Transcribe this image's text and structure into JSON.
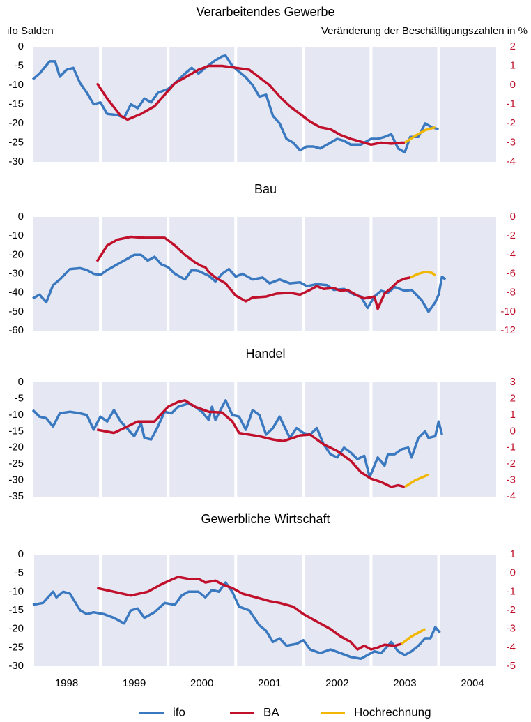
{
  "chart_data": [
    {
      "type": "line",
      "title": "Verarbeitendes Gewerbe",
      "ylabel": "ifo Salden",
      "y2label": "Veränderung der Beschäftigungszahlen in %",
      "xlim": [
        1998,
        2004.85
      ],
      "xticks": [
        1999,
        2000,
        2001,
        2002,
        2003,
        2004
      ],
      "ylim": [
        -30,
        0
      ],
      "yticks": [
        0,
        -5,
        -10,
        -15,
        -20,
        -25,
        -30
      ],
      "y2lim": [
        -4,
        2
      ],
      "y2ticks": [
        2,
        1,
        0,
        -1,
        -2,
        -3,
        -4
      ],
      "series": [
        {
          "name": "ifo",
          "color": "#3a78c0",
          "x": [
            1998.0,
            1998.1,
            1998.25,
            1998.33,
            1998.4,
            1998.5,
            1998.6,
            1998.7,
            1998.8,
            1998.9,
            1999.0,
            1999.1,
            1999.25,
            1999.35,
            1999.45,
            1999.55,
            1999.65,
            1999.75,
            1999.85,
            2000.0,
            2000.1,
            2000.25,
            2000.35,
            2000.45,
            2000.55,
            2000.7,
            2000.8,
            2000.85,
            2000.95,
            2001.05,
            2001.15,
            2001.25,
            2001.35,
            2001.45,
            2001.55,
            2001.65,
            2001.75,
            2001.85,
            2001.95,
            2002.05,
            2002.15,
            2002.25,
            2002.35,
            2002.5,
            2002.6,
            2002.7,
            2002.85,
            2003.0,
            2003.1,
            2003.2,
            2003.3,
            2003.4,
            2003.5,
            2003.58,
            2003.7,
            2003.8,
            2003.9,
            2004.0
          ],
          "values": [
            -8.5,
            -7,
            -3.8,
            -3.8,
            -7.8,
            -6,
            -5.5,
            -9.5,
            -12,
            -15,
            -14.5,
            -17.5,
            -17.8,
            -18.5,
            -15,
            -16,
            -13.5,
            -14.5,
            -12,
            -11,
            -9.5,
            -7,
            -5.5,
            -7,
            -5.5,
            -3.5,
            -2.5,
            -2.3,
            -5,
            -6.5,
            -8,
            -10,
            -13,
            -12.5,
            -18,
            -20,
            -24,
            -25,
            -27,
            -26,
            -26,
            -26.5,
            -25.5,
            -24,
            -24.5,
            -25.5,
            -25.5,
            -24,
            -24,
            -23.5,
            -22.8,
            -26.5,
            -27.5,
            -23.5,
            -23.5,
            -20,
            -21,
            -21.5
          ]
        },
        {
          "name": "BA",
          "color": "#c0102b",
          "axis": "y2",
          "x": [
            1998.95,
            1999.1,
            1999.3,
            1999.4,
            1999.6,
            1999.8,
            1999.95,
            2000.1,
            2000.3,
            2000.45,
            2000.6,
            2000.8,
            2001.0,
            2001.2,
            2001.35,
            2001.5,
            2001.65,
            2001.8,
            2001.95,
            2002.1,
            2002.25,
            2002.4,
            2002.55,
            2002.7,
            2002.85,
            2003.0,
            2003.15,
            2003.3,
            2003.45,
            2003.5
          ],
          "values": [
            0.1,
            -0.7,
            -1.6,
            -1.8,
            -1.5,
            -1.1,
            -0.5,
            0.1,
            0.5,
            0.8,
            1.0,
            1.0,
            0.9,
            0.8,
            0.4,
            0,
            -0.6,
            -1.1,
            -1.5,
            -1.9,
            -2.2,
            -2.3,
            -2.6,
            -2.8,
            -2.95,
            -3.1,
            -3.0,
            -3.05,
            -3.0,
            -3.0
          ]
        },
        {
          "name": "Hochrechnung",
          "color": "#f2b705",
          "axis": "y2",
          "x": [
            2003.5,
            2003.65,
            2003.8,
            2003.95
          ],
          "values": [
            -3.0,
            -2.65,
            -2.35,
            -2.2
          ]
        }
      ]
    },
    {
      "type": "line",
      "title": "Bau",
      "xlim": [
        1998,
        2004.85
      ],
      "xticks": [
        1999,
        2000,
        2001,
        2002,
        2003,
        2004
      ],
      "ylim": [
        -60,
        0
      ],
      "yticks": [
        0,
        -10,
        -20,
        -30,
        -40,
        -50,
        -60
      ],
      "y2lim": [
        -12,
        0
      ],
      "y2ticks": [
        0,
        -2,
        -4,
        -6,
        -8,
        -10,
        -12
      ],
      "series": [
        {
          "name": "ifo",
          "color": "#3a78c0",
          "x": [
            1998.0,
            1998.1,
            1998.2,
            1998.3,
            1998.4,
            1998.55,
            1998.7,
            1998.8,
            1998.9,
            1999.0,
            1999.1,
            1999.25,
            1999.4,
            1999.5,
            1999.6,
            1999.7,
            1999.8,
            1999.9,
            2000.0,
            2000.1,
            2000.25,
            2000.35,
            2000.45,
            2000.6,
            2000.7,
            2000.8,
            2000.9,
            2001.0,
            2001.1,
            2001.25,
            2001.4,
            2001.5,
            2001.65,
            2001.8,
            2001.95,
            2002.05,
            2002.2,
            2002.35,
            2002.45,
            2002.6,
            2002.75,
            2002.85,
            2002.95,
            2003.05,
            2003.15,
            2003.25,
            2003.35,
            2003.5,
            2003.6,
            2003.75,
            2003.85,
            2003.95,
            2004.0,
            2004.05,
            2004.1
          ],
          "values": [
            -43,
            -41,
            -45,
            -36,
            -33,
            -27.5,
            -27,
            -28,
            -30,
            -30.5,
            -28,
            -25,
            -22,
            -20,
            -20,
            -23,
            -21,
            -25,
            -26.5,
            -30,
            -33,
            -28,
            -28.5,
            -31,
            -34,
            -30,
            -27.5,
            -31.5,
            -30,
            -33,
            -32,
            -35,
            -33,
            -35,
            -34.5,
            -36.5,
            -35.5,
            -36,
            -38.5,
            -38,
            -41,
            -42,
            -48,
            -42,
            -39,
            -40,
            -37,
            -39,
            -38.5,
            -44,
            -50,
            -45,
            -41,
            -31.5,
            -33
          ]
        },
        {
          "name": "BA",
          "color": "#c0102b",
          "axis": "y2",
          "x": [
            1998.95,
            1999.1,
            1999.25,
            1999.45,
            1999.65,
            1999.95,
            2000.1,
            2000.25,
            2000.4,
            2000.5,
            2000.55,
            2000.6,
            2000.7,
            2000.85,
            2001.0,
            2001.15,
            2001.25,
            2001.45,
            2001.6,
            2001.8,
            2001.95,
            2002.1,
            2002.2,
            2002.3,
            2002.45,
            2002.55,
            2002.65,
            2002.8,
            2002.9,
            2003.05,
            2003.1,
            2003.2,
            2003.3,
            2003.4,
            2003.5,
            2003.58
          ],
          "values": [
            -4.7,
            -3,
            -2.4,
            -2.1,
            -2.2,
            -2.2,
            -3,
            -4,
            -4.8,
            -5.2,
            -5.3,
            -5.8,
            -6.4,
            -7,
            -8.3,
            -8.9,
            -8.5,
            -8.4,
            -8.1,
            -8.0,
            -8.2,
            -7.7,
            -7.3,
            -7.6,
            -7.5,
            -7.8,
            -7.7,
            -8.3,
            -8.6,
            -8.4,
            -9.7,
            -8.1,
            -7.5,
            -6.8,
            -6.5,
            -6.4
          ]
        },
        {
          "name": "Hochrechnung",
          "color": "#f2b705",
          "axis": "y2",
          "x": [
            2003.58,
            2003.7,
            2003.8,
            2003.9,
            2003.95
          ],
          "values": [
            -6.4,
            -6.0,
            -5.8,
            -5.9,
            -6.2
          ]
        }
      ]
    },
    {
      "type": "line",
      "title": "Handel",
      "xlim": [
        1998,
        2004.85
      ],
      "xticks": [
        1999,
        2000,
        2001,
        2002,
        2003,
        2004
      ],
      "ylim": [
        -35,
        0
      ],
      "yticks": [
        0,
        -5,
        -10,
        -15,
        -20,
        -25,
        -30,
        -35
      ],
      "y2lim": [
        -4,
        3
      ],
      "y2ticks": [
        3,
        2,
        1,
        0,
        -1,
        -2,
        -3,
        -4
      ],
      "series": [
        {
          "name": "ifo",
          "color": "#3a78c0",
          "x": [
            1998.0,
            1998.1,
            1998.2,
            1998.3,
            1998.4,
            1998.55,
            1998.7,
            1998.8,
            1998.9,
            1999.0,
            1999.1,
            1999.2,
            1999.3,
            1999.5,
            1999.6,
            1999.65,
            1999.75,
            1999.85,
            1999.95,
            2000.05,
            2000.15,
            2000.3,
            2000.4,
            2000.5,
            2000.6,
            2000.65,
            2000.7,
            2000.85,
            2000.95,
            2001.05,
            2001.15,
            2001.25,
            2001.35,
            2001.45,
            2001.55,
            2001.65,
            2001.8,
            2001.9,
            2002.0,
            2002.1,
            2002.2,
            2002.3,
            2002.4,
            2002.5,
            2002.6,
            2002.7,
            2002.8,
            2002.9,
            2002.98,
            2003.1,
            2003.2,
            2003.25,
            2003.35,
            2003.45,
            2003.55,
            2003.6,
            2003.7,
            2003.8,
            2003.85,
            2003.95,
            2004.0,
            2004.05
          ],
          "values": [
            -8.5,
            -10.5,
            -11,
            -13.5,
            -9.5,
            -9,
            -9.5,
            -10,
            -14.5,
            -10.5,
            -12,
            -8.5,
            -12,
            -16.5,
            -12.5,
            -17,
            -17.5,
            -13.5,
            -9,
            -9.5,
            -7.5,
            -6.5,
            -7.5,
            -9,
            -11.5,
            -7.5,
            -11.5,
            -5.5,
            -10,
            -10.5,
            -14.5,
            -8.5,
            -10,
            -16,
            -14,
            -10.5,
            -17,
            -14,
            -15.5,
            -16,
            -14,
            -19,
            -22,
            -23,
            -20,
            -21.5,
            -23.5,
            -22.5,
            -29,
            -23,
            -25.5,
            -22,
            -22,
            -20.5,
            -20,
            -23,
            -17,
            -15,
            -17,
            -16.5,
            -12,
            -16
          ]
        },
        {
          "name": "BA",
          "color": "#c0102b",
          "axis": "y2",
          "x": [
            1998.95,
            1999.2,
            1999.4,
            1999.55,
            1999.8,
            2000.0,
            2000.15,
            2000.25,
            2000.4,
            2000.6,
            2000.8,
            2000.95,
            2001.05,
            2001.2,
            2001.35,
            2001.55,
            2001.7,
            2001.85,
            2001.95,
            2002.1,
            2002.3,
            2002.5,
            2002.7,
            2002.85,
            2003.0,
            2003.15,
            2003.3,
            2003.4,
            2003.5
          ],
          "values": [
            0.1,
            -0.1,
            0.3,
            0.6,
            0.6,
            1.5,
            1.8,
            1.9,
            1.5,
            1.2,
            1.15,
            0.6,
            -0.1,
            -0.2,
            -0.3,
            -0.5,
            -0.6,
            -0.4,
            -0.25,
            -0.2,
            -0.8,
            -1.2,
            -1.8,
            -2.5,
            -2.9,
            -3.1,
            -3.4,
            -3.3,
            -3.4
          ]
        },
        {
          "name": "Hochrechnung",
          "color": "#f2b705",
          "axis": "y2",
          "x": [
            2003.5,
            2003.65,
            2003.85
          ],
          "values": [
            -3.4,
            -3.0,
            -2.65
          ]
        }
      ]
    },
    {
      "type": "line",
      "title": "Gewerbliche Wirtschaft",
      "xlim": [
        1998,
        2004.85
      ],
      "xticks": [
        1998,
        1999,
        2000,
        2001,
        2002,
        2003,
        2004
      ],
      "ylim": [
        -30,
        0
      ],
      "yticks": [
        0,
        -5,
        -10,
        -15,
        -20,
        -25,
        -30
      ],
      "y2lim": [
        -5,
        1
      ],
      "y2ticks": [
        1,
        0,
        -1,
        -2,
        -3,
        -4,
        -5
      ],
      "series": [
        {
          "name": "ifo",
          "color": "#3a78c0",
          "x": [
            1998.0,
            1998.15,
            1998.3,
            1998.35,
            1998.45,
            1998.55,
            1998.7,
            1998.8,
            1998.9,
            1999.05,
            1999.2,
            1999.35,
            1999.45,
            1999.55,
            1999.65,
            1999.8,
            1999.95,
            2000.1,
            2000.2,
            2000.3,
            2000.45,
            2000.55,
            2000.65,
            2000.75,
            2000.85,
            2000.95,
            2001.05,
            2001.2,
            2001.35,
            2001.45,
            2001.55,
            2001.65,
            2001.75,
            2001.9,
            2002.0,
            2002.1,
            2002.25,
            2002.4,
            2002.55,
            2002.7,
            2002.85,
            2002.95,
            2003.05,
            2003.15,
            2003.3,
            2003.4,
            2003.5,
            2003.6,
            2003.7,
            2003.8,
            2003.88,
            2003.95,
            2004.02
          ],
          "values": [
            -13.5,
            -13,
            -10,
            -11.5,
            -10,
            -10.5,
            -15,
            -16,
            -15.5,
            -16,
            -17,
            -18.5,
            -15,
            -14.5,
            -17,
            -15.5,
            -13,
            -13.5,
            -11,
            -10,
            -10,
            -11.5,
            -9.5,
            -10,
            -7.5,
            -10,
            -14,
            -15,
            -19,
            -20.5,
            -23.5,
            -22.5,
            -24.5,
            -24,
            -23,
            -25.5,
            -26.5,
            -25.5,
            -26.5,
            -27.5,
            -28,
            -27,
            -26,
            -26.5,
            -23.5,
            -26,
            -27,
            -26,
            -24.5,
            -22.5,
            -22.5,
            -19.5,
            -21
          ]
        },
        {
          "name": "BA",
          "color": "#c0102b",
          "axis": "y2",
          "x": [
            1998.95,
            1999.2,
            1999.45,
            1999.7,
            1999.9,
            2000.05,
            2000.15,
            2000.3,
            2000.45,
            2000.55,
            2000.7,
            2000.8,
            2000.95,
            2001.1,
            2001.3,
            2001.5,
            2001.65,
            2001.85,
            2002.0,
            2002.2,
            2002.4,
            2002.55,
            2002.7,
            2002.8,
            2002.9,
            2003.0,
            2003.1,
            2003.2,
            2003.35,
            2003.45
          ],
          "values": [
            -0.8,
            -1.0,
            -1.2,
            -1.0,
            -0.6,
            -0.35,
            -0.2,
            -0.3,
            -0.3,
            -0.5,
            -0.4,
            -0.6,
            -0.8,
            -1.1,
            -1.3,
            -1.5,
            -1.6,
            -1.8,
            -2.2,
            -2.6,
            -3.0,
            -3.4,
            -3.7,
            -4.1,
            -3.9,
            -4.1,
            -4.0,
            -3.85,
            -3.9,
            -3.8
          ]
        },
        {
          "name": "Hochrechnung",
          "color": "#f2b705",
          "axis": "y2",
          "x": [
            2003.45,
            2003.6,
            2003.8
          ],
          "values": [
            -3.8,
            -3.4,
            -3.0
          ]
        }
      ]
    }
  ]
}
